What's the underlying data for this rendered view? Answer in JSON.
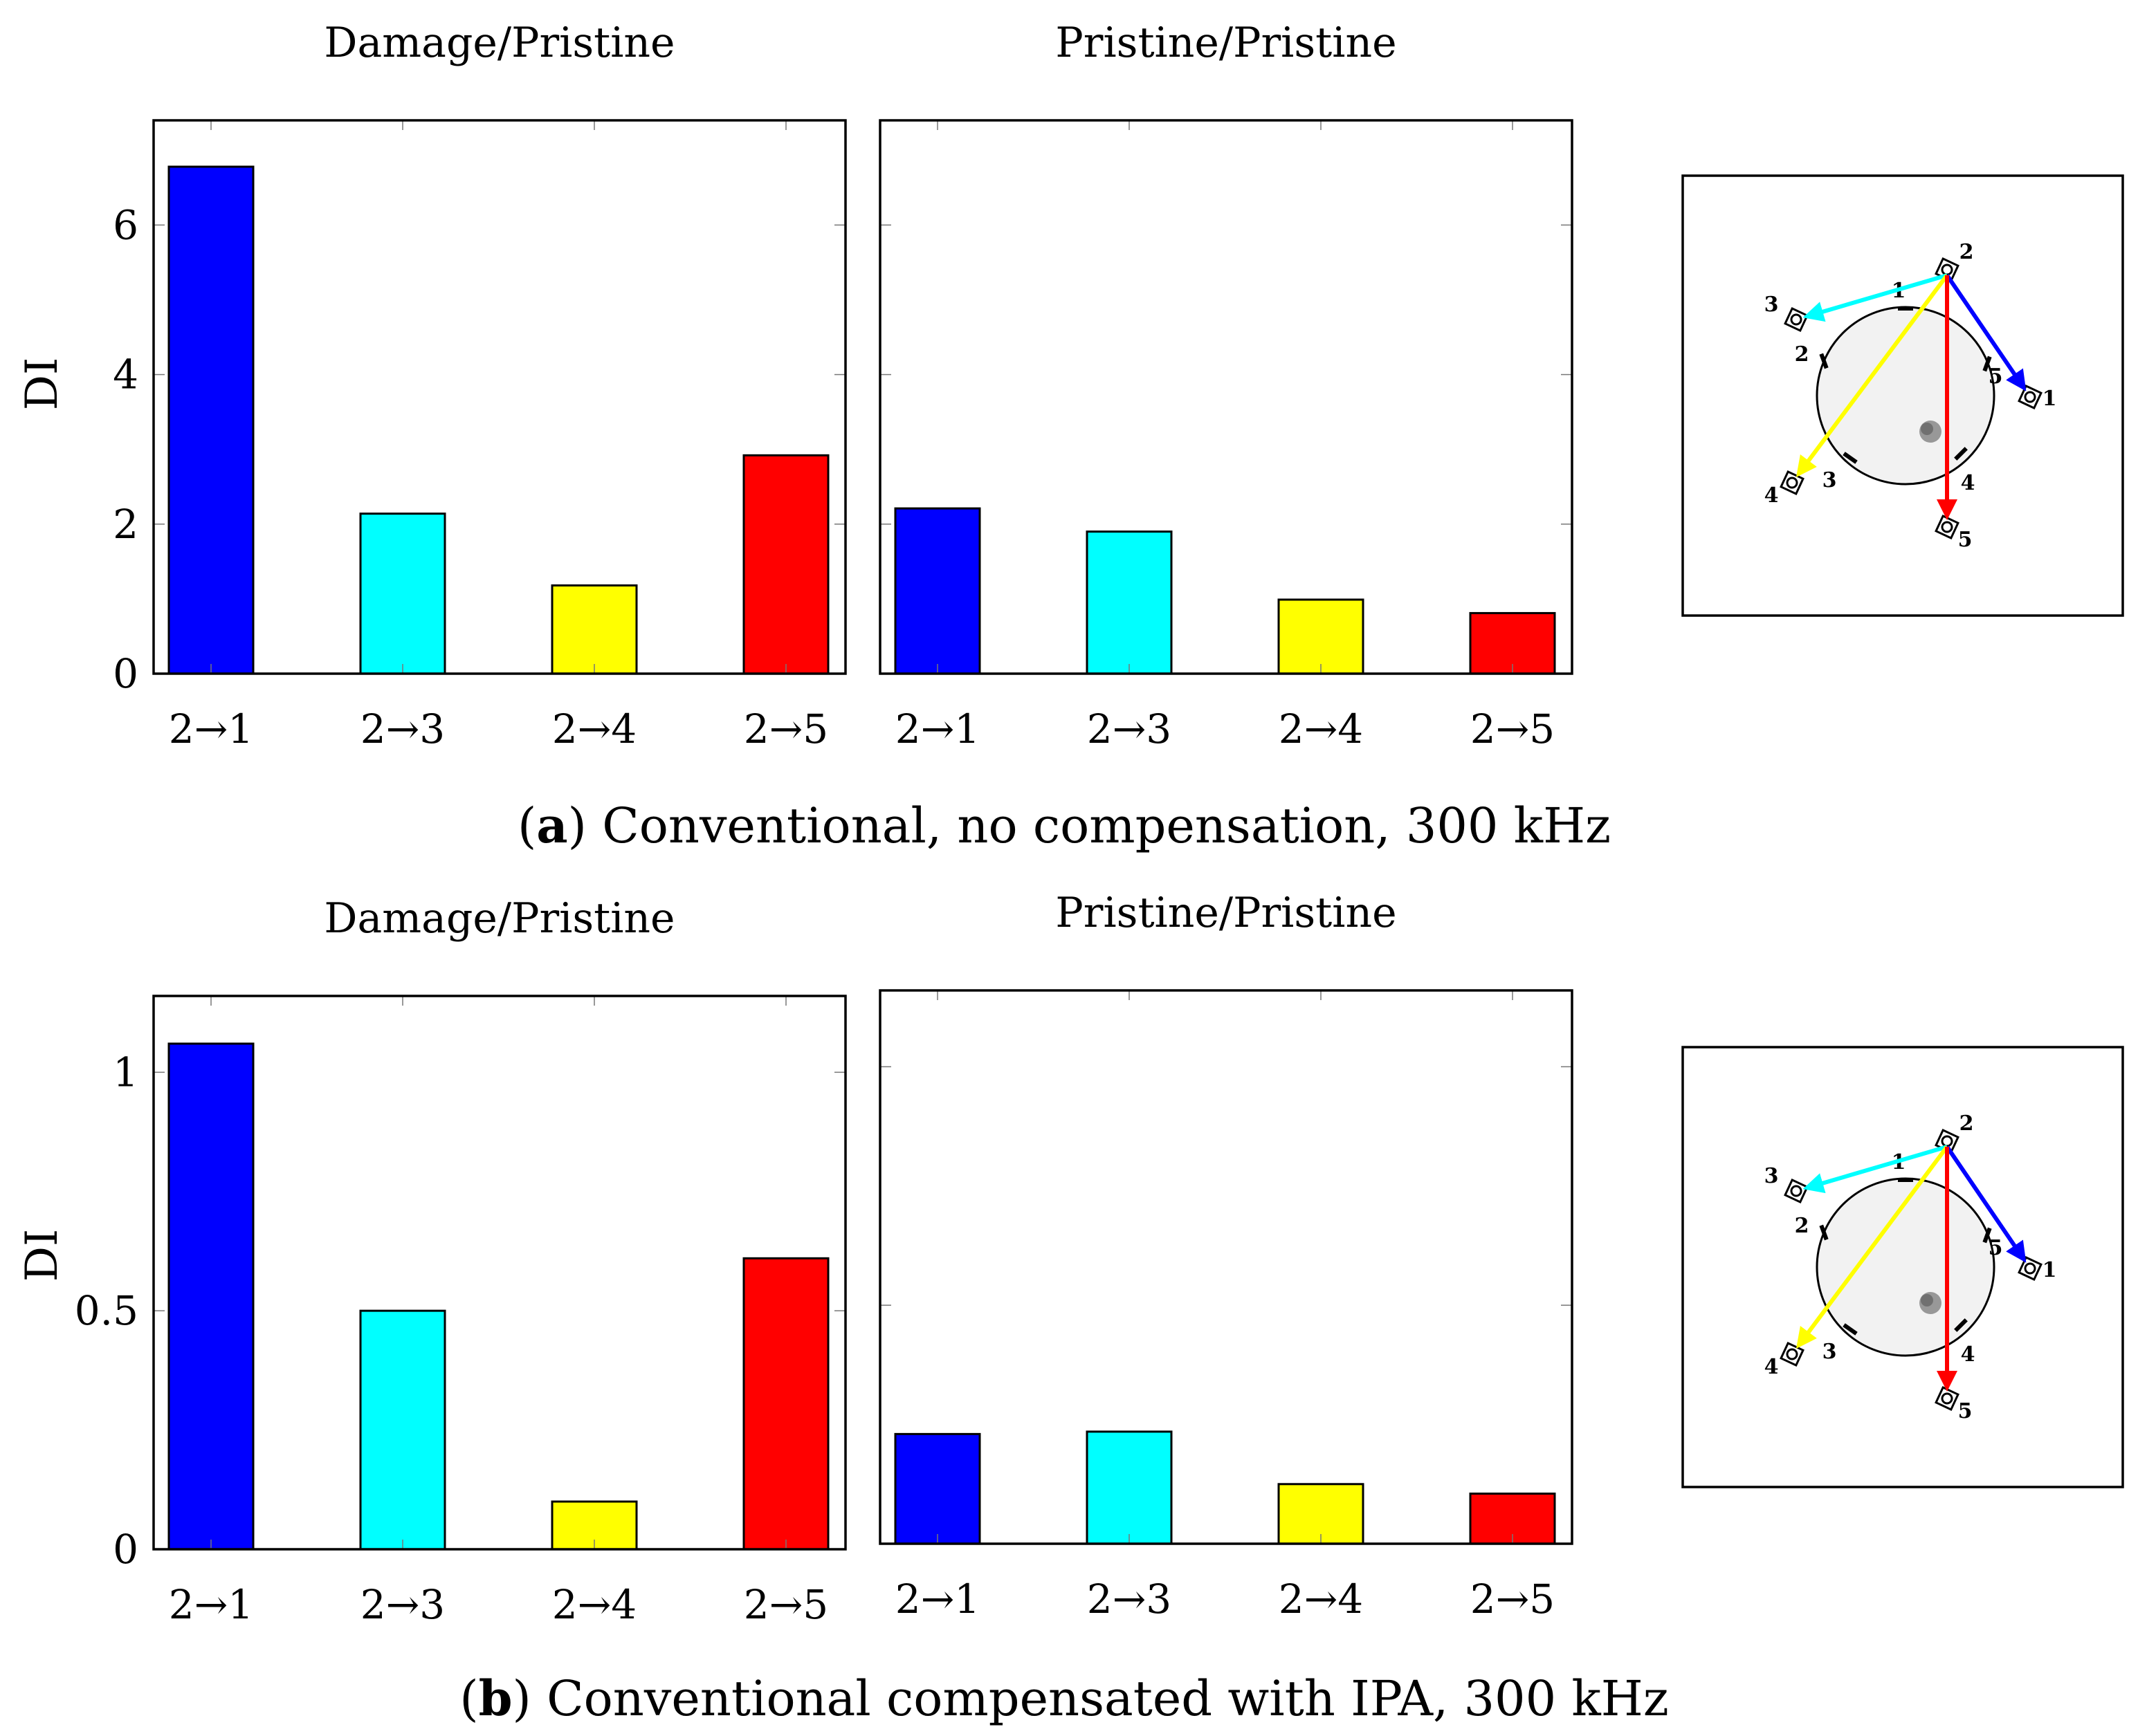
{
  "colors": {
    "series": [
      "#0000ff",
      "#00ffff",
      "#ffff00",
      "#ff0000"
    ],
    "axis": "#000000",
    "plate_fill": "#f2f2f2",
    "damage": "#888888"
  },
  "subfigures": [
    {
      "caption": {
        "letter": "a",
        "text": "Conventional, no compensation, 300 kHz"
      },
      "ylabel": "DI",
      "ytick_labels": [
        "0",
        "2",
        "4",
        "6"
      ],
      "diagram": {
        "transducers": [
          "1",
          "2",
          "3",
          "4",
          "5"
        ],
        "segments": [
          "1",
          "2",
          "3",
          "4",
          "5"
        ]
      }
    },
    {
      "caption": {
        "letter": "b",
        "text": "Conventional compensated with IPA, 300 kHz"
      },
      "ylabel": "DI",
      "ytick_labels": [
        "0",
        "0.5",
        "1"
      ],
      "diagram": {
        "transducers": [
          "1",
          "2",
          "3",
          "4",
          "5"
        ],
        "segments": [
          "1",
          "2",
          "3",
          "4",
          "5"
        ]
      }
    }
  ],
  "chart_data": [
    {
      "type": "bar",
      "title": "Damage/Pristine",
      "categories": [
        "2→1",
        "2→3",
        "2→4",
        "2→5"
      ],
      "values": [
        6.78,
        2.14,
        1.18,
        2.92
      ],
      "ylabel": "DI",
      "ylim": [
        0,
        7.4
      ],
      "yticks": [
        0,
        2,
        4,
        6
      ]
    },
    {
      "type": "bar",
      "title": "Pristine/Pristine",
      "categories": [
        "2→1",
        "2→3",
        "2→4",
        "2→5"
      ],
      "values": [
        2.21,
        1.9,
        0.99,
        0.81
      ],
      "ylabel": "",
      "ylim": [
        0,
        7.4
      ],
      "yticks": [
        0,
        2,
        4,
        6
      ]
    },
    {
      "type": "bar",
      "title": "Damage/Pristine",
      "categories": [
        "2→1",
        "2→3",
        "2→4",
        "2→5"
      ],
      "values": [
        1.06,
        0.5,
        0.1,
        0.61
      ],
      "ylabel": "DI",
      "ylim": [
        0,
        1.16
      ],
      "yticks": [
        0,
        0.5,
        1
      ]
    },
    {
      "type": "bar",
      "title": "Pristine/Pristine",
      "categories": [
        "2→1",
        "2→3",
        "2→4",
        "2→5"
      ],
      "values": [
        0.23,
        0.235,
        0.125,
        0.105
      ],
      "ylabel": "",
      "ylim": [
        0,
        1.16
      ],
      "yticks": [
        0,
        0.5,
        1
      ]
    }
  ]
}
